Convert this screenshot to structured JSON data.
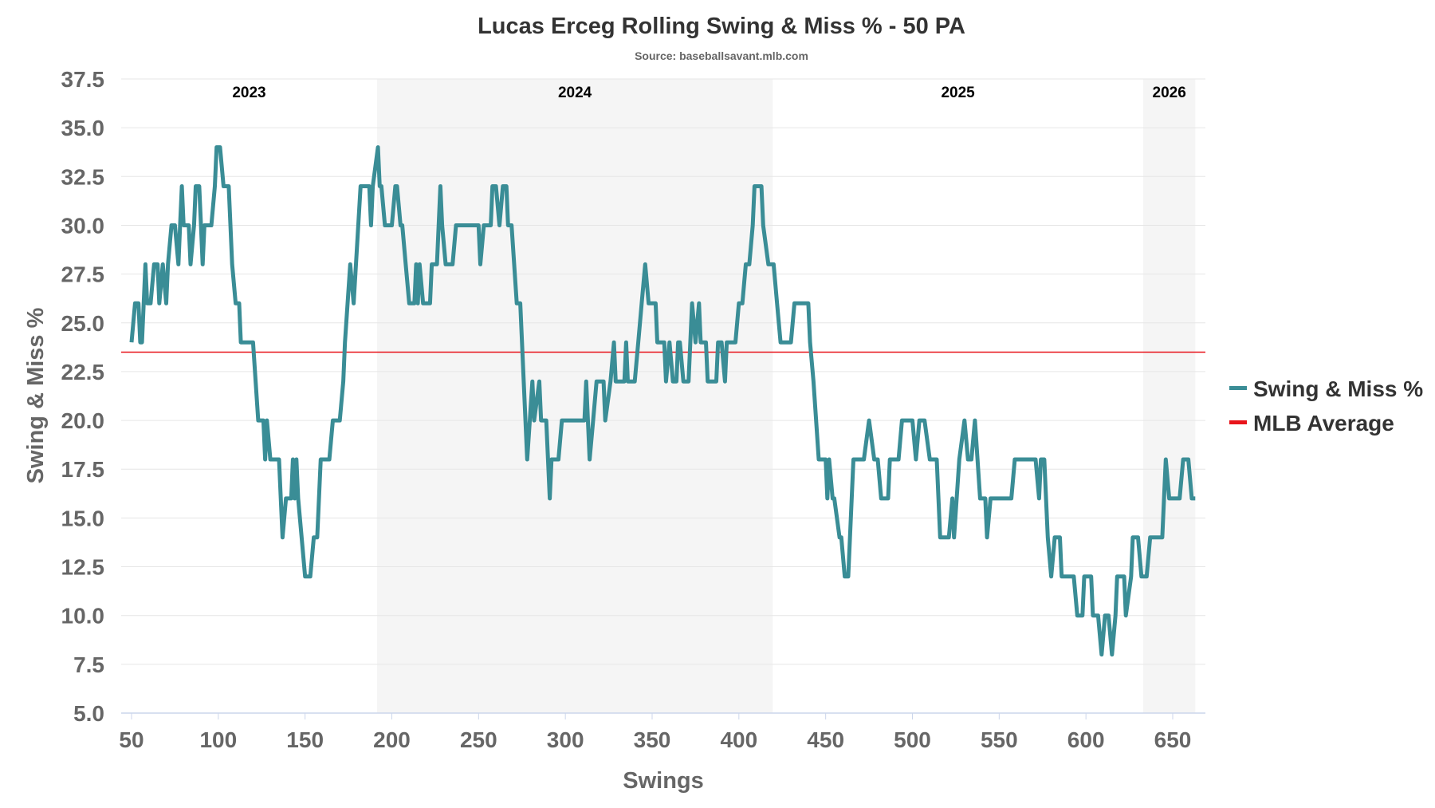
{
  "chart_data": {
    "type": "line",
    "title": "Lucas Erceg Rolling Swing & Miss % - 50 PA",
    "subtitle": "Source: baseballsavant.mlb.com",
    "xlabel": "Swings",
    "ylabel": "Swing & Miss %",
    "xlim": [
      44,
      665
    ],
    "ylim": [
      5.0,
      37.5
    ],
    "xticks": [
      "50",
      "100",
      "150",
      "200",
      "250",
      "300",
      "350",
      "400",
      "450",
      "500",
      "550",
      "600",
      "650"
    ],
    "yticks": [
      "5.0",
      "7.5",
      "10.0",
      "12.5",
      "15.0",
      "17.5",
      "20.0",
      "22.5",
      "25.0",
      "27.5",
      "30.0",
      "32.5",
      "35.0",
      "37.5"
    ],
    "grid": true,
    "legend_position": "right",
    "season_bands": [
      {
        "label": "2023",
        "start": 44,
        "end": 191.5,
        "shaded": false
      },
      {
        "label": "2024",
        "start": 191.5,
        "end": 419.5,
        "shaded": true
      },
      {
        "label": "2025",
        "start": 419.5,
        "end": 633,
        "shaded": false
      },
      {
        "label": "2026",
        "start": 633,
        "end": 663,
        "shaded": true
      }
    ],
    "reference_line": {
      "name": "MLB Average",
      "value": 23.5,
      "color": "#e8141b"
    },
    "series": [
      {
        "name": "Swing & Miss %",
        "color": "#3a8d96",
        "points": [
          [
            50,
            24
          ],
          [
            52,
            26
          ],
          [
            54,
            26
          ],
          [
            55,
            24
          ],
          [
            56,
            24
          ],
          [
            58,
            28
          ],
          [
            59,
            26
          ],
          [
            61,
            26
          ],
          [
            63,
            28
          ],
          [
            65,
            28
          ],
          [
            66,
            26
          ],
          [
            68,
            28
          ],
          [
            70,
            26
          ],
          [
            71,
            28
          ],
          [
            73,
            30
          ],
          [
            75,
            30
          ],
          [
            77,
            28
          ],
          [
            78,
            30
          ],
          [
            79,
            32
          ],
          [
            80,
            30
          ],
          [
            83,
            30
          ],
          [
            84,
            28
          ],
          [
            86,
            30
          ],
          [
            87,
            32
          ],
          [
            89,
            32
          ],
          [
            90,
            30
          ],
          [
            91,
            28
          ],
          [
            92,
            30
          ],
          [
            94,
            30
          ],
          [
            96,
            30
          ],
          [
            98,
            32
          ],
          [
            99,
            34
          ],
          [
            101,
            34
          ],
          [
            103,
            32
          ],
          [
            106,
            32
          ],
          [
            108,
            28
          ],
          [
            110,
            26
          ],
          [
            112,
            26
          ],
          [
            113,
            24
          ],
          [
            120,
            24
          ],
          [
            123,
            20
          ],
          [
            126,
            20
          ],
          [
            127,
            18
          ],
          [
            128,
            20
          ],
          [
            130,
            18
          ],
          [
            135,
            18
          ],
          [
            137,
            14
          ],
          [
            139,
            16
          ],
          [
            142,
            16
          ],
          [
            143,
            18
          ],
          [
            144,
            16
          ],
          [
            145,
            18
          ],
          [
            146,
            16
          ],
          [
            150,
            12
          ],
          [
            153,
            12
          ],
          [
            155,
            14
          ],
          [
            157,
            14
          ],
          [
            159,
            18
          ],
          [
            164,
            18
          ],
          [
            166,
            20
          ],
          [
            170,
            20
          ],
          [
            172,
            22
          ],
          [
            173,
            24
          ],
          [
            176,
            28
          ],
          [
            178,
            26
          ],
          [
            182,
            32
          ],
          [
            187,
            32
          ],
          [
            188,
            30
          ],
          [
            189,
            32
          ],
          [
            192,
            34
          ],
          [
            193,
            32
          ],
          [
            194,
            32
          ],
          [
            196,
            30
          ],
          [
            200,
            30
          ],
          [
            202,
            32
          ],
          [
            203,
            32
          ],
          [
            205,
            30
          ],
          [
            206,
            30
          ],
          [
            208,
            28
          ],
          [
            210,
            26
          ],
          [
            213,
            26
          ],
          [
            214,
            28
          ],
          [
            215,
            26
          ],
          [
            216,
            28
          ],
          [
            218,
            26
          ],
          [
            222,
            26
          ],
          [
            223,
            28
          ],
          [
            226,
            28
          ],
          [
            228,
            32
          ],
          [
            229,
            30
          ],
          [
            231,
            28
          ],
          [
            235,
            28
          ],
          [
            237,
            30
          ],
          [
            250,
            30
          ],
          [
            251,
            28
          ],
          [
            253,
            30
          ],
          [
            257,
            30
          ],
          [
            258,
            32
          ],
          [
            260,
            32
          ],
          [
            262,
            30
          ],
          [
            264,
            32
          ],
          [
            266,
            32
          ],
          [
            267,
            30
          ],
          [
            269,
            30
          ],
          [
            272,
            26
          ],
          [
            274,
            26
          ],
          [
            277,
            20
          ],
          [
            278,
            18
          ],
          [
            281,
            22
          ],
          [
            282,
            20
          ],
          [
            285,
            22
          ],
          [
            286,
            20
          ],
          [
            289,
            20
          ],
          [
            291,
            16
          ],
          [
            292,
            18
          ],
          [
            296,
            18
          ],
          [
            298,
            20
          ],
          [
            311,
            20
          ],
          [
            312,
            22
          ],
          [
            314,
            18
          ],
          [
            316,
            20
          ],
          [
            318,
            22
          ],
          [
            322,
            22
          ],
          [
            323,
            20
          ],
          [
            326,
            22
          ],
          [
            328,
            24
          ],
          [
            329,
            22
          ],
          [
            334,
            22
          ],
          [
            335,
            24
          ],
          [
            336,
            22
          ],
          [
            340,
            22
          ],
          [
            342,
            24
          ],
          [
            344,
            26
          ],
          [
            346,
            28
          ],
          [
            348,
            26
          ],
          [
            352,
            26
          ],
          [
            353,
            24
          ],
          [
            357,
            24
          ],
          [
            358,
            22
          ],
          [
            360,
            24
          ],
          [
            362,
            22
          ],
          [
            364,
            22
          ],
          [
            365,
            24
          ],
          [
            366,
            24
          ],
          [
            368,
            22
          ],
          [
            371,
            22
          ],
          [
            372,
            24
          ],
          [
            373,
            26
          ],
          [
            375,
            24
          ],
          [
            377,
            26
          ],
          [
            378,
            24
          ],
          [
            381,
            24
          ],
          [
            382,
            22
          ],
          [
            387,
            22
          ],
          [
            388,
            24
          ],
          [
            390,
            24
          ],
          [
            392,
            22
          ],
          [
            393,
            24
          ],
          [
            398,
            24
          ],
          [
            400,
            26
          ],
          [
            402,
            26
          ],
          [
            404,
            28
          ],
          [
            406,
            28
          ],
          [
            408,
            30
          ],
          [
            409,
            32
          ],
          [
            413,
            32
          ],
          [
            414,
            30
          ],
          [
            417,
            28
          ],
          [
            420,
            28
          ],
          [
            422,
            26
          ],
          [
            424,
            24
          ],
          [
            430,
            24
          ],
          [
            432,
            26
          ],
          [
            440,
            26
          ],
          [
            441,
            24
          ],
          [
            443,
            22
          ],
          [
            446,
            18
          ],
          [
            450,
            18
          ],
          [
            451,
            16
          ],
          [
            452,
            18
          ],
          [
            454,
            16
          ],
          [
            455,
            16
          ],
          [
            458,
            14
          ],
          [
            459,
            14
          ],
          [
            461,
            12
          ],
          [
            463,
            12
          ],
          [
            466,
            18
          ],
          [
            472,
            18
          ],
          [
            475,
            20
          ],
          [
            478,
            18
          ],
          [
            480,
            18
          ],
          [
            482,
            16
          ],
          [
            486,
            16
          ],
          [
            487,
            18
          ],
          [
            492,
            18
          ],
          [
            494,
            20
          ],
          [
            500,
            20
          ],
          [
            502,
            18
          ],
          [
            504,
            20
          ],
          [
            507,
            20
          ],
          [
            510,
            18
          ],
          [
            514,
            18
          ],
          [
            516,
            14
          ],
          [
            521,
            14
          ],
          [
            523,
            16
          ],
          [
            524,
            14
          ],
          [
            527,
            18
          ],
          [
            530,
            20
          ],
          [
            532,
            18
          ],
          [
            534,
            18
          ],
          [
            536,
            20
          ],
          [
            539,
            16
          ],
          [
            542,
            16
          ],
          [
            543,
            14
          ],
          [
            545,
            16
          ],
          [
            557,
            16
          ],
          [
            559,
            18
          ],
          [
            571,
            18
          ],
          [
            573,
            16
          ],
          [
            574,
            18
          ],
          [
            576,
            18
          ],
          [
            578,
            14
          ],
          [
            580,
            12
          ],
          [
            582,
            14
          ],
          [
            585,
            14
          ],
          [
            586,
            12
          ],
          [
            593,
            12
          ],
          [
            595,
            10
          ],
          [
            598,
            10
          ],
          [
            599,
            12
          ],
          [
            603,
            12
          ],
          [
            604,
            10
          ],
          [
            607,
            10
          ],
          [
            609,
            8
          ],
          [
            611,
            10
          ],
          [
            613,
            10
          ],
          [
            615,
            8
          ],
          [
            617,
            10
          ],
          [
            618,
            12
          ],
          [
            622,
            12
          ],
          [
            623,
            10
          ],
          [
            626,
            12
          ],
          [
            627,
            14
          ],
          [
            630,
            14
          ],
          [
            632,
            12
          ],
          [
            635,
            12
          ],
          [
            637,
            14
          ],
          [
            644,
            14
          ],
          [
            646,
            18
          ],
          [
            648,
            16
          ],
          [
            654,
            16
          ],
          [
            656,
            18
          ],
          [
            659,
            18
          ],
          [
            661,
            16
          ],
          [
            663,
            16
          ]
        ]
      }
    ]
  }
}
